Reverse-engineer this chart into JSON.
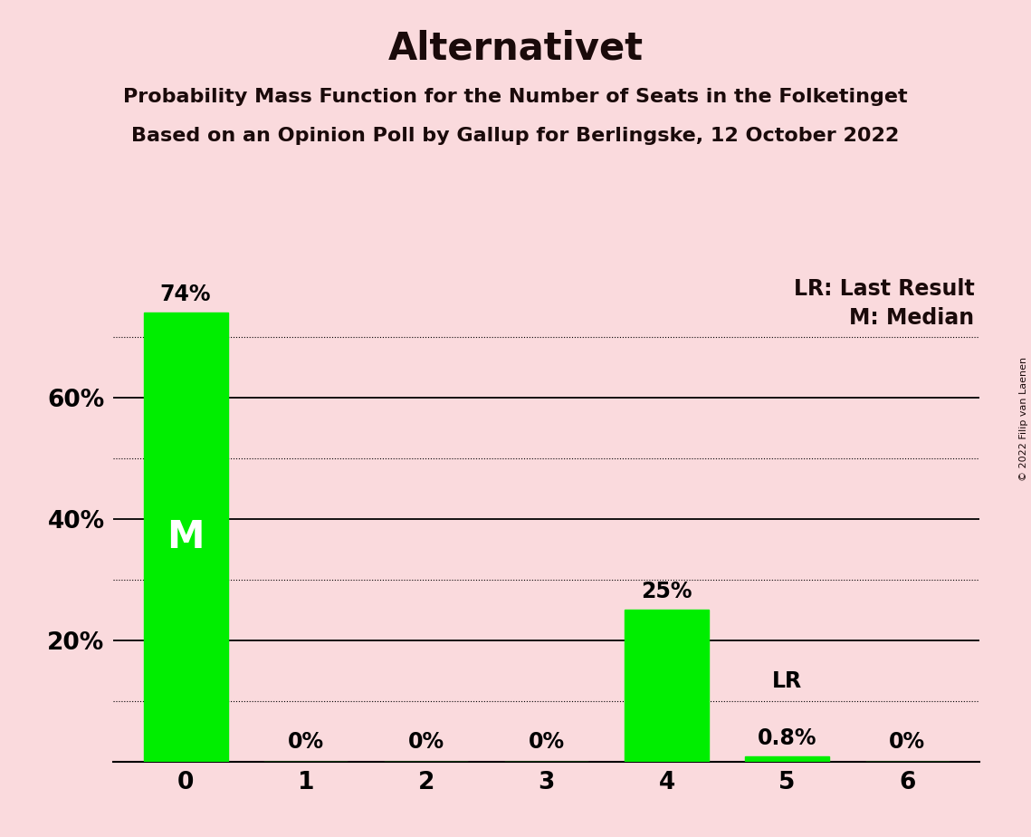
{
  "title": "Alternativet",
  "subtitle1": "Probability Mass Function for the Number of Seats in the Folketinget",
  "subtitle2": "Based on an Opinion Poll by Gallup for Berlingske, 12 October 2022",
  "copyright": "© 2022 Filip van Laenen",
  "categories": [
    0,
    1,
    2,
    3,
    4,
    5,
    6
  ],
  "values": [
    74.0,
    0.0,
    0.0,
    0.0,
    25.0,
    0.8,
    0.0
  ],
  "bar_color": "#00ee00",
  "background_color": "#fadadd",
  "bar_labels": [
    "74%",
    "0%",
    "0%",
    "0%",
    "25%",
    "0.8%",
    "0%"
  ],
  "median_bar": 0,
  "last_result_bar": 5,
  "legend_lr": "LR: Last Result",
  "legend_m": "M: Median",
  "ylim": [
    0,
    80
  ],
  "solid_yticks": [
    20,
    40,
    60
  ],
  "dotted_yticks": [
    10,
    30,
    50,
    70
  ],
  "title_fontsize": 30,
  "subtitle_fontsize": 16,
  "bar_label_fontsize": 17,
  "axis_tick_fontsize": 19,
  "legend_fontsize": 17,
  "median_label_fontsize": 30,
  "lr_label_fontsize": 17
}
